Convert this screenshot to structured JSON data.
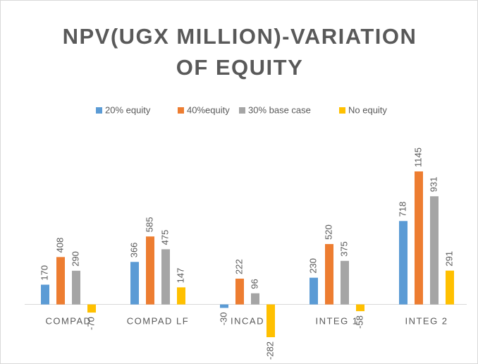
{
  "chart_data": {
    "type": "bar",
    "title": "NPV(UGX MILLION)-VARIATION OF EQUITY",
    "categories": [
      "COMPAD",
      "COMPAD LF",
      "INCAD",
      "INTEG 1",
      "INTEG 2"
    ],
    "series": [
      {
        "name": "20% equity",
        "color": "#5b9bd5",
        "values": [
          170,
          366,
          -30,
          230,
          718
        ]
      },
      {
        "name": "40%equity",
        "color": "#ed7d31",
        "values": [
          408,
          585,
          222,
          520,
          1145
        ]
      },
      {
        "name": "30% base case",
        "color": "#a5a5a5",
        "values": [
          290,
          475,
          96,
          375,
          931
        ]
      },
      {
        "name": "No equity",
        "color": "#ffc000",
        "values": [
          -70,
          147,
          -282,
          -58,
          291
        ]
      }
    ],
    "legend": "top"
  }
}
